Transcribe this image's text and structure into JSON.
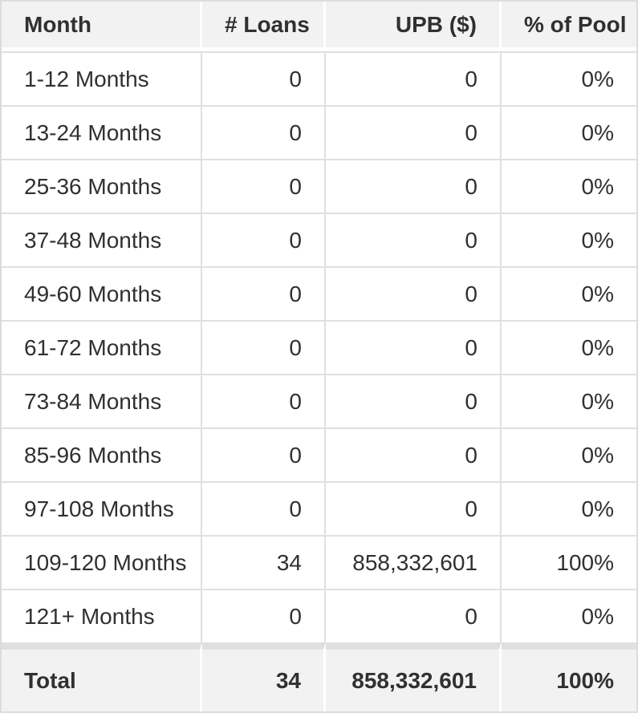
{
  "table": {
    "columns": [
      {
        "key": "month",
        "label": "Month",
        "align": "left"
      },
      {
        "key": "loans",
        "label": "# Loans",
        "align": "right"
      },
      {
        "key": "upb",
        "label": "UPB ($)",
        "align": "right"
      },
      {
        "key": "pct",
        "label": "% of Pool",
        "align": "right"
      }
    ],
    "rows": [
      {
        "month": "1-12 Months",
        "loans": "0",
        "upb": "0",
        "pct": "0%"
      },
      {
        "month": "13-24 Months",
        "loans": "0",
        "upb": "0",
        "pct": "0%"
      },
      {
        "month": "25-36 Months",
        "loans": "0",
        "upb": "0",
        "pct": "0%"
      },
      {
        "month": "37-48 Months",
        "loans": "0",
        "upb": "0",
        "pct": "0%"
      },
      {
        "month": "49-60 Months",
        "loans": "0",
        "upb": "0",
        "pct": "0%"
      },
      {
        "month": "61-72 Months",
        "loans": "0",
        "upb": "0",
        "pct": "0%"
      },
      {
        "month": "73-84 Months",
        "loans": "0",
        "upb": "0",
        "pct": "0%"
      },
      {
        "month": "85-96 Months",
        "loans": "0",
        "upb": "0",
        "pct": "0%"
      },
      {
        "month": "97-108 Months",
        "loans": "0",
        "upb": "0",
        "pct": "0%"
      },
      {
        "month": "109-120 Months",
        "loans": "34",
        "upb": "858,332,601",
        "pct": "100%"
      },
      {
        "month": "121+ Months",
        "loans": "0",
        "upb": "0",
        "pct": "0%"
      }
    ],
    "total": {
      "month": "Total",
      "loans": "34",
      "upb": "858,332,601",
      "pct": "100%"
    }
  },
  "colors": {
    "header_bg": "#f2f2f2",
    "total_bg": "#f2f2f2",
    "row_border": "#e0e0e0",
    "outer_border": "#dcdcdc",
    "body_bg": "#ffffff",
    "text": "#303030"
  }
}
